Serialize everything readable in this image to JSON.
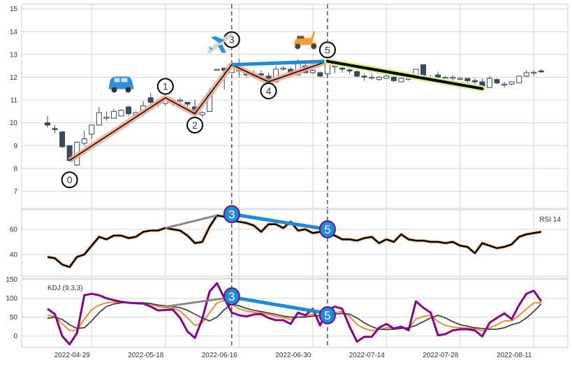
{
  "chart_data": [
    {
      "type": "candlestick",
      "panel": "price",
      "ylim": [
        6.2,
        15.2
      ],
      "yticks": [
        "7",
        "8",
        "9",
        "10",
        "11",
        "12",
        "13",
        "14",
        "15"
      ],
      "ohlc": [
        [
          10.0,
          10.3,
          9.8,
          9.9
        ],
        [
          9.75,
          9.9,
          9.55,
          9.72
        ],
        [
          9.6,
          9.65,
          8.9,
          8.95
        ],
        [
          9.0,
          9.0,
          8.3,
          8.35
        ],
        [
          8.15,
          9.15,
          8.1,
          9.15
        ],
        [
          9.1,
          9.65,
          9.0,
          9.3
        ],
        [
          9.5,
          9.9,
          9.3,
          9.9
        ],
        [
          9.9,
          10.7,
          9.9,
          10.45
        ],
        [
          10.2,
          10.5,
          10.1,
          10.25
        ],
        [
          10.2,
          10.6,
          10.2,
          10.5
        ],
        [
          10.3,
          10.6,
          10.3,
          10.55
        ],
        [
          10.7,
          10.75,
          10.3,
          10.4
        ],
        [
          10.35,
          10.5,
          10.3,
          10.45
        ],
        [
          10.45,
          10.95,
          10.4,
          10.75
        ],
        [
          11.1,
          11.3,
          10.8,
          10.9
        ],
        [
          10.85,
          11.0,
          10.7,
          10.9
        ],
        [
          10.85,
          11.1,
          10.75,
          11.05
        ],
        [
          10.95,
          11.0,
          10.75,
          10.98
        ],
        [
          11.0,
          11.1,
          10.9,
          11.0
        ],
        [
          10.9,
          10.9,
          10.6,
          10.82
        ],
        [
          10.7,
          11.0,
          10.35,
          10.4
        ],
        [
          10.35,
          10.5,
          10.25,
          10.45
        ],
        [
          10.5,
          11.5,
          10.5,
          11.3
        ],
        [
          12.35,
          12.36,
          12.3,
          12.35
        ],
        [
          12.4,
          12.4,
          11.45,
          12.3
        ],
        [
          12.2,
          12.6,
          12.2,
          12.55
        ],
        [
          12.3,
          12.8,
          12.0,
          12.32
        ],
        [
          12.15,
          12.3,
          12.0,
          12.12
        ],
        [
          12.1,
          12.3,
          11.95,
          12.08
        ],
        [
          12.15,
          12.3,
          12.0,
          12.1
        ],
        [
          12.05,
          12.2,
          11.75,
          11.8
        ],
        [
          11.8,
          12.5,
          11.75,
          12.35
        ],
        [
          12.35,
          12.5,
          12.3,
          12.4
        ],
        [
          12.35,
          12.45,
          12.15,
          12.2
        ],
        [
          12.1,
          12.8,
          12.1,
          12.6
        ],
        [
          12.5,
          12.6,
          12.2,
          12.2
        ],
        [
          12.2,
          12.35,
          12.15,
          12.3
        ],
        [
          12.2,
          12.25,
          12.0,
          12.05
        ],
        [
          12.15,
          12.75,
          12.15,
          12.7
        ],
        [
          12.5,
          12.6,
          12.2,
          12.5
        ],
        [
          12.4,
          12.55,
          12.2,
          12.35
        ],
        [
          12.32,
          12.45,
          12.15,
          12.28
        ],
        [
          12.25,
          12.3,
          12.0,
          12.05
        ],
        [
          12.05,
          12.15,
          11.85,
          12.04
        ],
        [
          12.0,
          12.15,
          11.9,
          12.0
        ],
        [
          11.9,
          12.05,
          11.85,
          12.0
        ],
        [
          11.95,
          12.15,
          11.95,
          12.05
        ],
        [
          12.0,
          12.05,
          11.8,
          11.85
        ],
        [
          11.8,
          12.0,
          11.8,
          11.95
        ],
        [
          11.95,
          12.05,
          11.85,
          11.95
        ],
        [
          12.0,
          12.35,
          12.0,
          12.35
        ],
        [
          12.55,
          12.55,
          12.05,
          12.05
        ],
        [
          12.0,
          12.1,
          11.9,
          12.0
        ],
        [
          12.1,
          12.25,
          12.0,
          12.0
        ],
        [
          12.0,
          12.05,
          11.95,
          12.0
        ],
        [
          12.0,
          12.1,
          11.85,
          12.0
        ],
        [
          11.95,
          12.0,
          11.9,
          11.95
        ],
        [
          11.95,
          11.95,
          11.75,
          11.85
        ],
        [
          11.85,
          11.95,
          11.7,
          11.8
        ],
        [
          11.8,
          11.95,
          11.55,
          11.6
        ],
        [
          11.55,
          12.05,
          11.55,
          11.95
        ],
        [
          11.9,
          11.95,
          11.7,
          11.75
        ],
        [
          11.7,
          11.8,
          11.55,
          11.7
        ],
        [
          11.7,
          11.8,
          11.65,
          11.8
        ],
        [
          11.75,
          12.05,
          11.75,
          12.05
        ],
        [
          12.05,
          12.3,
          12.0,
          12.2
        ],
        [
          12.2,
          12.3,
          12.05,
          12.22
        ],
        [
          12.28,
          12.35,
          12.2,
          12.25
        ]
      ],
      "zigzag": [
        [
          3,
          8.35
        ],
        [
          16,
          11.1
        ],
        [
          20,
          10.4
        ],
        [
          25,
          12.55
        ],
        [
          30,
          11.8
        ],
        [
          38,
          12.7
        ]
      ],
      "trend_blue": [
        [
          25,
          12.55
        ],
        [
          38,
          12.7
        ]
      ],
      "trend_green": [
        [
          38,
          12.7
        ],
        [
          59,
          11.5
        ]
      ],
      "pivot_labels": [
        {
          "text": "0",
          "i": 3,
          "p": 7.5
        },
        {
          "text": "1",
          "i": 16,
          "p": 11.6
        },
        {
          "text": "2",
          "i": 20,
          "p": 9.9
        },
        {
          "text": "3",
          "i": 25,
          "p": 13.65
        },
        {
          "text": "4",
          "i": 30,
          "p": 11.4
        },
        {
          "text": "5",
          "i": 38,
          "p": 13.2
        }
      ],
      "icons": [
        {
          "name": "car-icon",
          "i": 10,
          "p": 11.6
        },
        {
          "name": "airplane-icon",
          "i": 23.5,
          "p": 13.5
        },
        {
          "name": "scooter-icon",
          "i": 35,
          "p": 13.6
        }
      ],
      "vlines": [
        25,
        38
      ]
    },
    {
      "type": "line",
      "panel": "rsi",
      "label": "RSI 14",
      "ylim": [
        23,
        77
      ],
      "yticks": [
        "40",
        "60"
      ],
      "values": [
        38,
        37,
        32,
        30,
        38,
        40,
        47,
        54,
        52,
        55,
        55,
        53,
        54,
        58,
        59,
        59,
        61,
        60,
        59,
        55,
        49,
        50,
        62,
        71,
        70,
        67,
        66,
        65,
        63,
        58,
        64,
        64,
        61,
        66,
        59,
        60,
        57,
        58,
        56,
        55,
        52,
        52,
        51,
        53,
        54,
        49,
        52,
        50,
        56,
        52,
        51,
        51,
        50,
        50,
        49,
        50,
        47,
        46,
        41,
        49,
        47,
        45,
        46,
        48,
        54,
        56,
        57,
        58
      ],
      "trend_grey": [
        [
          16,
          61
        ],
        [
          23,
          71
        ]
      ],
      "trend_blue": [
        [
          25,
          72
        ],
        [
          38,
          60
        ]
      ],
      "markers": [
        {
          "text": "3",
          "i": 25,
          "v": 72
        },
        {
          "text": "5",
          "i": 38,
          "v": 60
        }
      ]
    },
    {
      "type": "line",
      "panel": "kdj",
      "label": "KDJ (9,3,3)",
      "ylim": [
        -30,
        152
      ],
      "yticks": [
        "0",
        "50",
        "100",
        "150"
      ],
      "series": [
        {
          "name": "K",
          "color": "#f5821f",
          "values": [
            55,
            52,
            32,
            15,
            15,
            45,
            70,
            82,
            88,
            90,
            90,
            89,
            88,
            87,
            84,
            78,
            75,
            74,
            66,
            48,
            28,
            35,
            62,
            88,
            95,
            84,
            72,
            66,
            63,
            61,
            57,
            52,
            49,
            44,
            50,
            52,
            58,
            48,
            55,
            62,
            65,
            52,
            30,
            20,
            14,
            17,
            22,
            22,
            23,
            20,
            45,
            52,
            55,
            38,
            28,
            24,
            22,
            21,
            20,
            14,
            22,
            30,
            40,
            40,
            55,
            72,
            88,
            88
          ]
        },
        {
          "name": "D",
          "color": "#444444",
          "values": [
            47,
            50,
            44,
            30,
            20,
            22,
            40,
            62,
            78,
            85,
            88,
            89,
            88,
            88,
            86,
            82,
            80,
            78,
            75,
            68,
            58,
            48,
            40,
            50,
            70,
            85,
            80,
            73,
            68,
            65,
            61,
            57,
            53,
            50,
            50,
            50,
            53,
            55,
            55,
            58,
            60,
            58,
            48,
            35,
            25,
            18,
            17,
            18,
            20,
            22,
            28,
            38,
            48,
            55,
            48,
            38,
            30,
            26,
            22,
            20,
            18,
            18,
            22,
            30,
            35,
            48,
            65,
            85
          ]
        },
        {
          "name": "J",
          "color": "#8b008b",
          "values": [
            72,
            58,
            0,
            -22,
            8,
            108,
            112,
            108,
            100,
            95,
            91,
            88,
            87,
            86,
            78,
            68,
            69,
            70,
            48,
            12,
            -5,
            45,
            118,
            140,
            100,
            62,
            55,
            52,
            57,
            58,
            48,
            42,
            42,
            32,
            62,
            55,
            72,
            28,
            68,
            78,
            72,
            25,
            -15,
            -2,
            -2,
            22,
            32,
            20,
            25,
            15,
            92,
            75,
            62,
            2,
            5,
            15,
            18,
            18,
            15,
            -1,
            35,
            48,
            60,
            45,
            82,
            112,
            120,
            92
          ]
        }
      ],
      "trend_grey": [
        [
          16,
          78
        ],
        [
          24,
          100
        ]
      ],
      "trend_blue": [
        [
          25,
          103
        ],
        [
          38,
          60
        ]
      ],
      "markers": [
        {
          "text": "3",
          "i": 25,
          "v": 105
        },
        {
          "text": "5",
          "i": 38,
          "v": 55
        }
      ]
    }
  ],
  "xaxis": {
    "ticks": [
      {
        "i": 6,
        "label": "2022-04-29"
      },
      {
        "i": 16,
        "label": "2022-05-18"
      },
      {
        "i": 26,
        "label": "2022-06-16"
      },
      {
        "i": 36,
        "label": "2022-06-30"
      },
      {
        "i": 46,
        "label": "2022-07-14"
      },
      {
        "i": 56,
        "label": "2022-07-28"
      },
      {
        "i": 66,
        "label": "2022-08-11"
      }
    ]
  },
  "colors": {
    "down": "#3b4760",
    "up": "#ffffff",
    "zigzag_glow": "#f4a58a",
    "blue": "#1f8ad6",
    "green_glow": "#d6f28a",
    "grid": "#d4d4d4",
    "marker_border": "#5a1a8a"
  }
}
